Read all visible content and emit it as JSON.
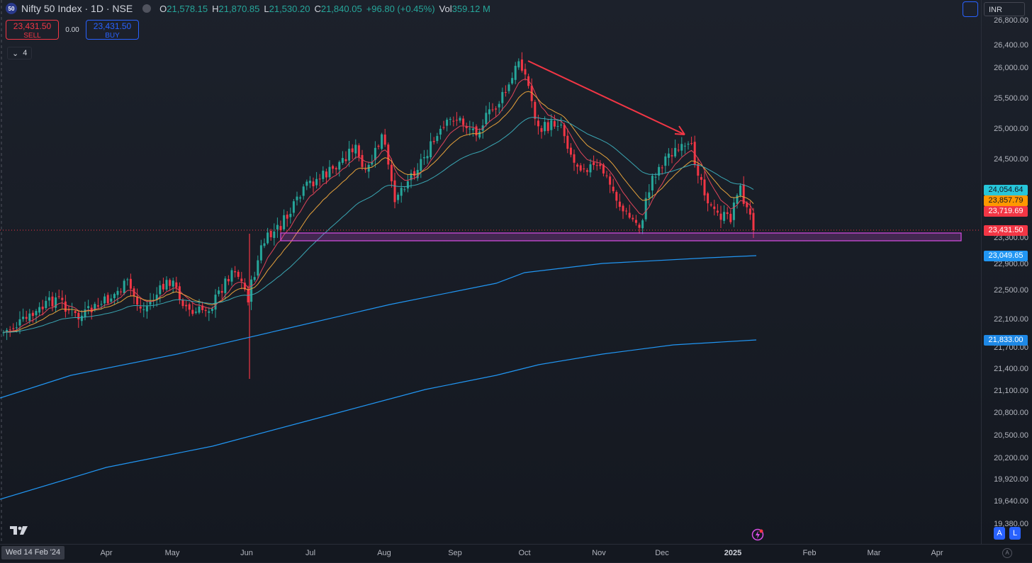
{
  "header": {
    "symbol_badge": "50",
    "title": "Nifty 50 Index · 1D · NSE",
    "ohlc": [
      {
        "k": "O",
        "v": "21,578.15"
      },
      {
        "k": "H",
        "v": "21,870.85"
      },
      {
        "k": "L",
        "v": "21,530.20"
      },
      {
        "k": "C",
        "v": "21,840.05"
      },
      {
        "k": "",
        "v": "+96.80 (+0.45%)"
      },
      {
        "k": "Vol",
        "v": "359.12 M"
      }
    ]
  },
  "trade": {
    "sell_price": "23,431.50",
    "sell_label": "SELL",
    "spread": "0.00",
    "buy_price": "23,431.50",
    "buy_label": "BUY"
  },
  "indicators_count": "4",
  "currency": "INR",
  "price_ticks": [
    "26,800.00",
    "26,400.00",
    "26,000.00",
    "25,500.00",
    "25,000.00",
    "24,500.00",
    "23,300.00",
    "22,900.00",
    "22,500.00",
    "22,100.00",
    "21,700.00",
    "21,400.00",
    "21,100.00",
    "20,800.00",
    "20,500.00",
    "20,200.00",
    "19,920.00",
    "19,640.00",
    "19,380.00"
  ],
  "price_tags": [
    {
      "value": "24,054.64",
      "color": "#26c6da",
      "text_color": "#131722"
    },
    {
      "value": "23,857.79",
      "color": "#ff9800",
      "text_color": "#131722"
    },
    {
      "value": "23,719.69",
      "color": "#f23645",
      "text_color": "#ffffff"
    },
    {
      "value": "23,431.50",
      "color": "#f23645",
      "text_color": "#ffffff"
    },
    {
      "value": "23,049.65",
      "color": "#2196f3",
      "text_color": "#ffffff"
    },
    {
      "value": "21,833.00",
      "color": "#1e88e5",
      "text_color": "#ffffff"
    }
  ],
  "time_axis": {
    "cursor_date": "Wed 14 Feb '24",
    "months": [
      "Apr",
      "May",
      "Jun",
      "Jul",
      "Aug",
      "Sep",
      "Oct",
      "Nov",
      "Dec",
      "2025",
      "Feb",
      "Mar",
      "Apr"
    ]
  },
  "scale_buttons": {
    "auto": "A",
    "log": "L",
    "auto_small": "A"
  },
  "colors": {
    "up": "#26a69a",
    "down": "#f23645",
    "ema_fast": "#e0455a",
    "ema_mid": "#e6a23c",
    "ema_slow": "#3aa6b3",
    "ma_long": "#2196f3",
    "zone": "#d84de6",
    "arrow": "#f23645"
  },
  "chart_data": {
    "type": "candlestick",
    "symbol": "Nifty 50 Index",
    "interval": "1D",
    "y_range": [
      19380,
      26800
    ],
    "x_categories": [
      "Apr",
      "May",
      "Jun",
      "Jul",
      "Aug",
      "Sep",
      "Oct",
      "Nov",
      "Dec",
      "2025",
      "Feb",
      "Mar",
      "Apr"
    ],
    "support_zone": [
      23300,
      23431.5
    ],
    "current_price": 23431.5
  }
}
